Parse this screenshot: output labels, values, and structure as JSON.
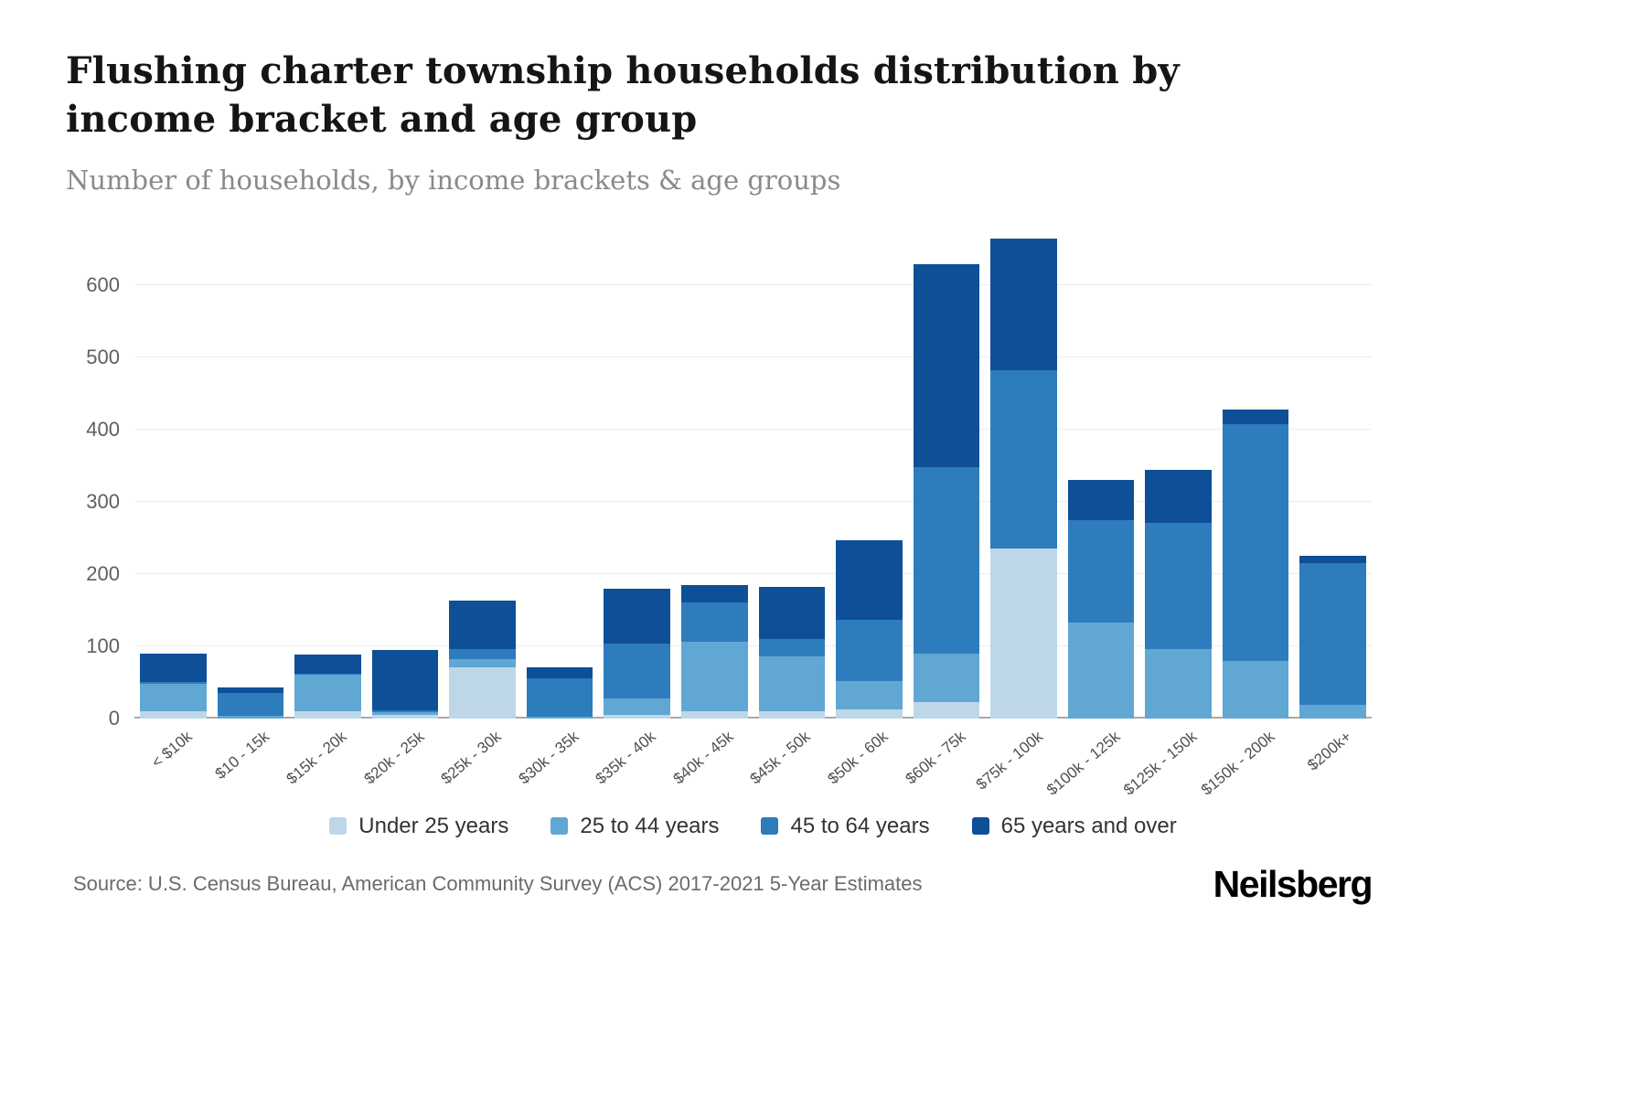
{
  "title": "Flushing charter township households distribution by income bracket and age group",
  "subtitle": "Number of households, by income brackets & age groups",
  "source": "Source: U.S. Census Bureau, American Community Survey (ACS) 2017-2021 5-Year Estimates",
  "brand": "Neilsberg",
  "chart_data": {
    "type": "bar",
    "stacked": true,
    "title": "Flushing charter township households distribution by income bracket and age group",
    "subtitle": "Number of households, by income brackets & age groups",
    "xlabel": "",
    "ylabel": "",
    "grid": true,
    "legend_position": "bottom",
    "ylim": [
      0,
      672
    ],
    "yticks": [
      0,
      100,
      200,
      300,
      400,
      500,
      600
    ],
    "categories": [
      "< $10k",
      "$10 - 15k",
      "$15k - 20k",
      "$20k - 25k",
      "$25k - 30k",
      "$30k - 35k",
      "$35k - 40k",
      "$40k - 45k",
      "$45k - 50k",
      "$50k - 60k",
      "$60k - 75k",
      "$75k - 100k",
      "$100k - 125k",
      "$125k - 150k",
      "$150k - 200k",
      "$200k+"
    ],
    "series": [
      {
        "name": "Under 25 years",
        "color": "#bdd7e9",
        "values": [
          10,
          0,
          10,
          5,
          70,
          0,
          5,
          10,
          10,
          12,
          22,
          235,
          0,
          0,
          0,
          0
        ]
      },
      {
        "name": "25 to 44 years",
        "color": "#61a7d3",
        "values": [
          38,
          3,
          50,
          4,
          12,
          2,
          22,
          96,
          76,
          40,
          68,
          0,
          133,
          96,
          80,
          18
        ]
      },
      {
        "name": "45 to 64 years",
        "color": "#2d7cbc",
        "values": [
          2,
          32,
          2,
          2,
          14,
          53,
          76,
          54,
          24,
          85,
          258,
          247,
          142,
          175,
          328,
          197
        ]
      },
      {
        "name": "65 years and over",
        "color": "#0e4f97",
        "values": [
          40,
          8,
          26,
          84,
          67,
          15,
          77,
          25,
          72,
          110,
          282,
          183,
          55,
          73,
          20,
          10
        ]
      }
    ],
    "totals": [
      90,
      43,
      88,
      95,
      163,
      70,
      180,
      185,
      182,
      247,
      630,
      665,
      330,
      344,
      428,
      225
    ]
  }
}
